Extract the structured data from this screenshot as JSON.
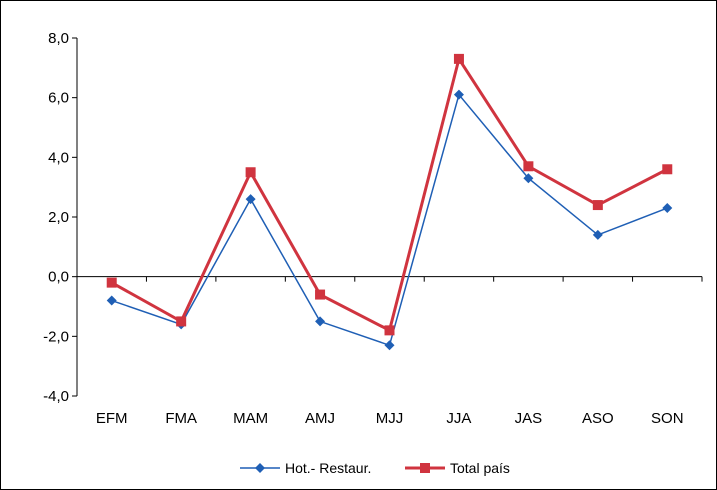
{
  "chart_data": {
    "type": "line",
    "title": "",
    "xlabel": "",
    "ylabel": "",
    "categories": [
      "EFM",
      "FMA",
      "MAM",
      "AMJ",
      "MJJ",
      "JJA",
      "JAS",
      "ASO",
      "SON"
    ],
    "ylim": [
      -4.0,
      8.0
    ],
    "yticks": [
      8.0,
      6.0,
      4.0,
      2.0,
      0.0,
      -2.0,
      -4.0
    ],
    "ytick_labels": [
      "8,0",
      "6,0",
      "4,0",
      "2,0",
      "0,0",
      "-2,0",
      "-4,0"
    ],
    "grid": false,
    "legend_position": "bottom",
    "series": [
      {
        "name": "Hot.- Restaur.",
        "values": [
          -0.8,
          -1.6,
          2.6,
          -1.5,
          -2.3,
          6.1,
          3.3,
          1.4,
          2.3
        ],
        "color": "#1f5fb5",
        "marker": "diamond"
      },
      {
        "name": "Total país",
        "values": [
          -0.2,
          -1.5,
          3.5,
          -0.6,
          -1.8,
          7.3,
          3.7,
          2.4,
          3.6
        ],
        "color": "#d0343f",
        "marker": "square"
      }
    ]
  }
}
